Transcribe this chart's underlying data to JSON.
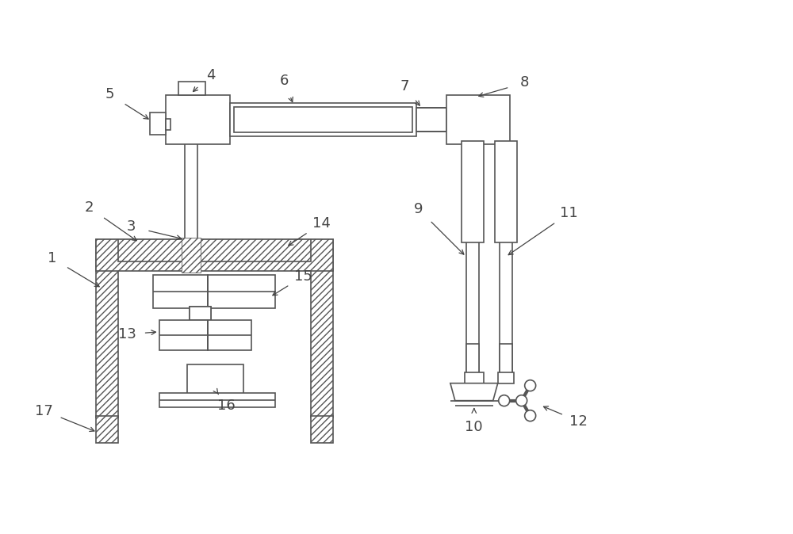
{
  "bg": "#ffffff",
  "lc": "#555555",
  "tc": "#444444",
  "lw": 1.2,
  "fs": 13,
  "figsize": [
    10.0,
    6.74
  ],
  "dpi": 100,
  "xlim": [
    0,
    10
  ],
  "ylim": [
    0,
    6.74
  ]
}
